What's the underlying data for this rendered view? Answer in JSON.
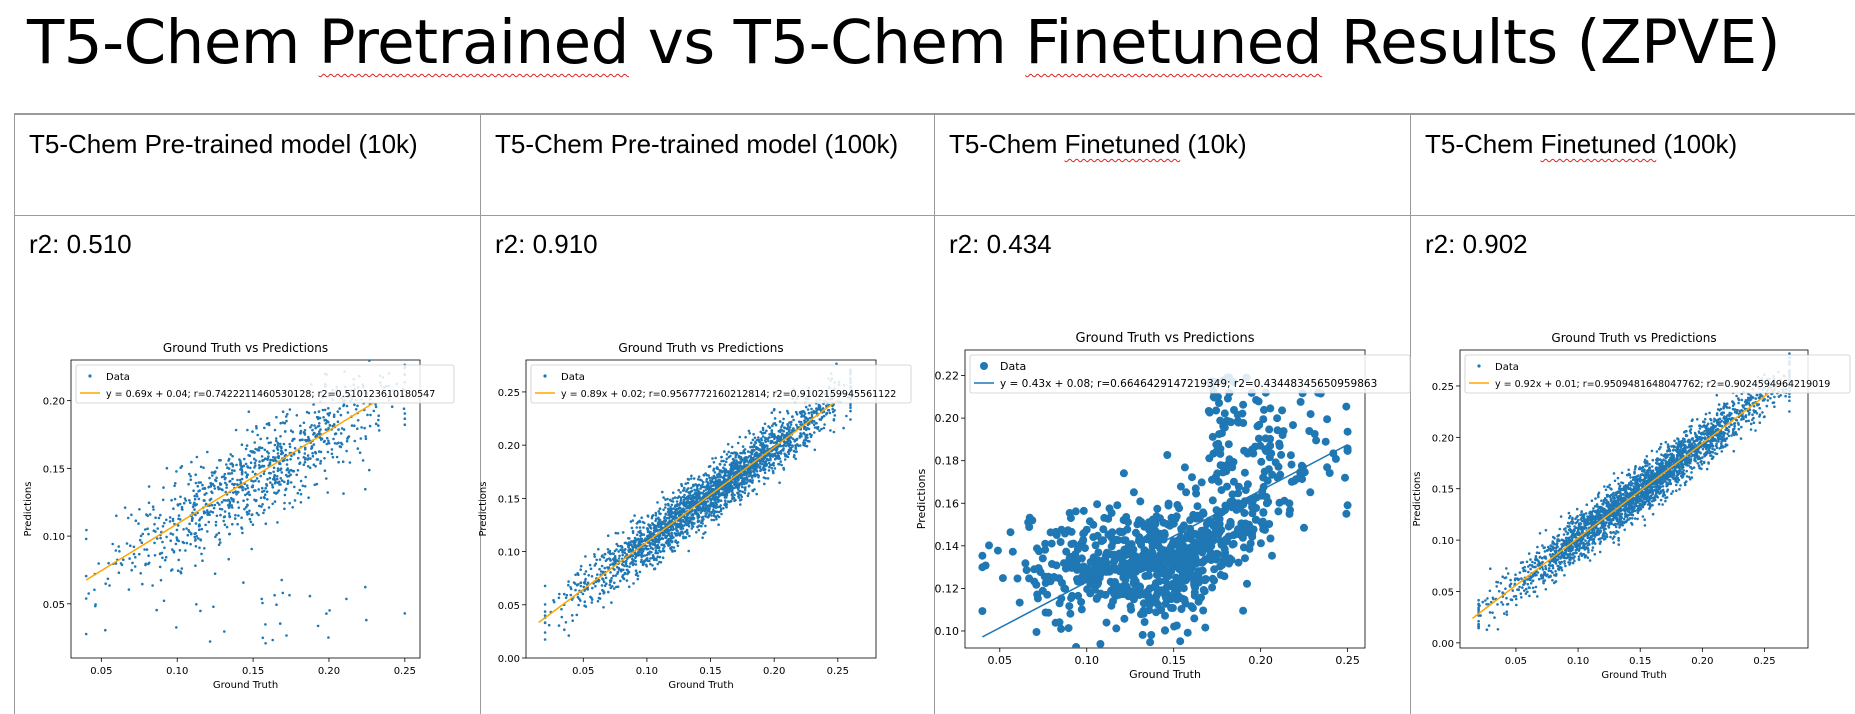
{
  "title": {
    "pre": "T5-Chem ",
    "w1": "Pretrained",
    "mid": " vs T5-Chem ",
    "w2": "Finetuned",
    "post": " Results (ZPVE)"
  },
  "columns": [
    {
      "header_pre": "T5-Chem Pre-trained model (10k)",
      "header_sq": "",
      "header_post": "",
      "r2_text": "r2: 0.510"
    },
    {
      "header_pre": "T5-Chem Pre-trained model (100k)",
      "header_sq": "",
      "header_post": "",
      "r2_text": "r2: 0.910"
    },
    {
      "header_pre": "T5-Chem ",
      "header_sq": "Finetuned",
      "header_post": " (10k)",
      "r2_text": "r2: 0.434"
    },
    {
      "header_pre": "T5-Chem ",
      "header_sq": "Finetuned",
      "header_post": " (100k)",
      "r2_text": "r2: 0.902"
    }
  ],
  "chart_data": [
    {
      "type": "scatter",
      "title": "Ground Truth vs Predictions",
      "xlabel": "Ground Truth",
      "ylabel": "Predictions",
      "xlim": [
        0.03,
        0.26
      ],
      "ylim": [
        0.01,
        0.23
      ],
      "xticks": [
        "0.05",
        "0.10",
        "0.15",
        "0.20",
        "0.25"
      ],
      "yticks": [
        "0.05",
        "0.10",
        "0.15",
        "0.20"
      ],
      "legend": [
        "Data",
        "y = 0.69x + 0.04; r=0.7422211460530128; r2=0.5101236101805​47"
      ],
      "fit": {
        "slope": 0.69,
        "intercept": 0.04,
        "x_range": [
          0.04,
          0.23
        ],
        "color": "#ffa500"
      },
      "points": {
        "n": 1000,
        "spread": 0.018,
        "outliers": true,
        "x_range": [
          0.04,
          0.25
        ]
      },
      "marker": "small"
    },
    {
      "type": "scatter",
      "title": "Ground Truth vs Predictions",
      "xlabel": "Ground Truth",
      "ylabel": "Predictions",
      "xlim": [
        0.005,
        0.28
      ],
      "ylim": [
        0.0,
        0.28
      ],
      "xticks": [
        "0.05",
        "0.10",
        "0.15",
        "0.20",
        "0.25"
      ],
      "yticks": [
        "0.00",
        "0.05",
        "0.10",
        "0.15",
        "0.20",
        "0.25"
      ],
      "legend": [
        "Data",
        "y = 0.89x + 0.02; r=0.9567772160212814; r2=0.9102159945561122"
      ],
      "fit": {
        "slope": 0.89,
        "intercept": 0.02,
        "x_range": [
          0.015,
          0.25
        ],
        "color": "#ffa500"
      },
      "points": {
        "n": 2600,
        "spread": 0.012,
        "outliers": false,
        "x_range": [
          0.02,
          0.26
        ]
      },
      "marker": "small"
    },
    {
      "type": "scatter",
      "title": "Ground Truth vs Predictions",
      "xlabel": "Ground Truth",
      "ylabel": "Predictions",
      "xlim": [
        0.03,
        0.26
      ],
      "ylim": [
        0.092,
        0.232
      ],
      "xticks": [
        "0.05",
        "0.10",
        "0.15",
        "0.20",
        "0.25"
      ],
      "yticks": [
        "0.10",
        "0.12",
        "0.14",
        "0.16",
        "0.18",
        "0.20",
        "0.22"
      ],
      "legend": [
        "Data",
        "y = 0.43x + 0.08; r=0.6646429147219349; r2=0.43448345650959863"
      ],
      "fit": {
        "slope": 0.43,
        "intercept": 0.08,
        "x_range": [
          0.04,
          0.25
        ],
        "color": "#1f77b4"
      },
      "points": {
        "n": 900,
        "spread": 0.012,
        "outliers": true,
        "x_range": [
          0.04,
          0.25
        ]
      },
      "marker": "large"
    },
    {
      "type": "scatter",
      "title": "Ground Truth vs Predictions",
      "xlabel": "Ground Truth",
      "ylabel": "Predictions",
      "xlim": [
        0.005,
        0.285
      ],
      "ylim": [
        -0.005,
        0.285
      ],
      "xticks": [
        "0.05",
        "0.10",
        "0.15",
        "0.20",
        "0.25"
      ],
      "yticks": [
        "0.00",
        "0.05",
        "0.10",
        "0.15",
        "0.20",
        "0.25"
      ],
      "legend": [
        "Data",
        "y = 0.92x + 0.01; r=0.9509481648047762; r2=0.9024594964219019"
      ],
      "fit": {
        "slope": 0.92,
        "intercept": 0.01,
        "x_range": [
          0.015,
          0.27
        ],
        "color": "#ffa500"
      },
      "points": {
        "n": 3000,
        "spread": 0.011,
        "outliers": false,
        "x_range": [
          0.02,
          0.27
        ]
      },
      "marker": "small"
    }
  ]
}
